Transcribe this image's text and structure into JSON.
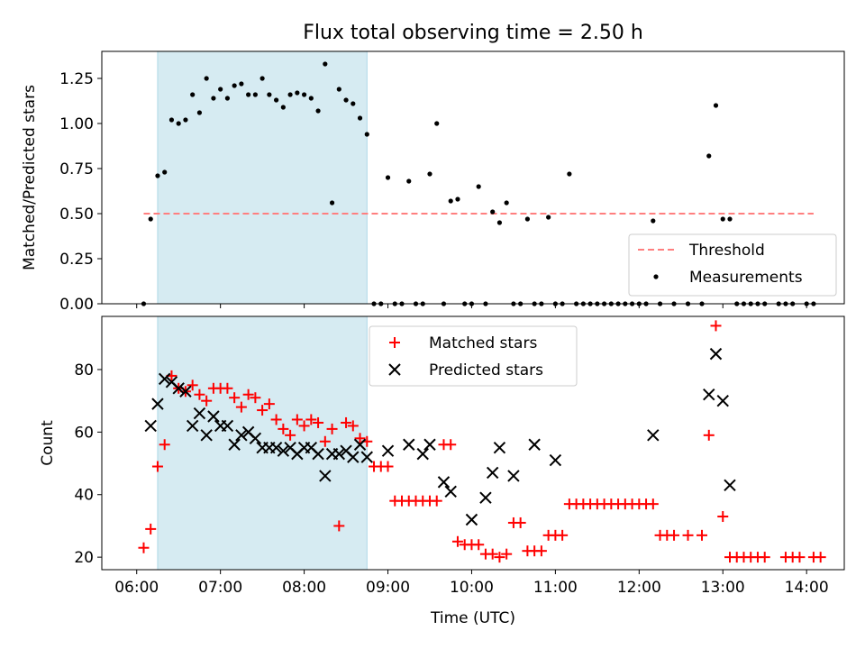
{
  "figure": {
    "title": "Flux total observing time = 2.50 h"
  },
  "chart_data": [
    {
      "type": "scatter",
      "panel": "top",
      "ylabel": "Matched/Predicted stars",
      "xlabel": "",
      "xlim": [
        "05:35",
        "14:27"
      ],
      "ylim": [
        0,
        1.4
      ],
      "yticks": [
        "0.00",
        "0.25",
        "0.50",
        "0.75",
        "1.00",
        "1.25"
      ],
      "shaded_interval": [
        "06:15",
        "08:45"
      ],
      "threshold": {
        "name": "Threshold",
        "value": 0.5,
        "x_range": [
          "06:05",
          "14:05"
        ],
        "color": "#ff7f7f"
      },
      "legend": {
        "position": "bottom-right",
        "entries": [
          "Threshold",
          "Measurements"
        ]
      },
      "series": [
        {
          "name": "Measurements",
          "marker": "dot",
          "color": "#000000",
          "points": [
            [
              "06:05",
              0.0
            ],
            [
              "06:10",
              0.47
            ],
            [
              "06:15",
              0.71
            ],
            [
              "06:20",
              0.73
            ],
            [
              "06:25",
              1.02
            ],
            [
              "06:30",
              1.0
            ],
            [
              "06:35",
              1.02
            ],
            [
              "06:40",
              1.16
            ],
            [
              "06:45",
              1.06
            ],
            [
              "06:50",
              1.25
            ],
            [
              "06:55",
              1.14
            ],
            [
              "07:00",
              1.19
            ],
            [
              "07:05",
              1.14
            ],
            [
              "07:10",
              1.21
            ],
            [
              "07:15",
              1.22
            ],
            [
              "07:20",
              1.16
            ],
            [
              "07:25",
              1.16
            ],
            [
              "07:30",
              1.25
            ],
            [
              "07:35",
              1.16
            ],
            [
              "07:40",
              1.13
            ],
            [
              "07:45",
              1.09
            ],
            [
              "07:50",
              1.16
            ],
            [
              "07:55",
              1.17
            ],
            [
              "08:00",
              1.16
            ],
            [
              "08:05",
              1.14
            ],
            [
              "08:10",
              1.07
            ],
            [
              "08:15",
              1.33
            ],
            [
              "08:20",
              0.56
            ],
            [
              "08:25",
              1.19
            ],
            [
              "08:30",
              1.13
            ],
            [
              "08:35",
              1.11
            ],
            [
              "08:40",
              1.03
            ],
            [
              "08:45",
              0.94
            ],
            [
              "08:50",
              0.0
            ],
            [
              "08:55",
              0.0
            ],
            [
              "09:00",
              0.7
            ],
            [
              "09:05",
              0.0
            ],
            [
              "09:10",
              0.0
            ],
            [
              "09:15",
              0.68
            ],
            [
              "09:20",
              0.0
            ],
            [
              "09:25",
              0.0
            ],
            [
              "09:30",
              0.72
            ],
            [
              "09:35",
              1.0
            ],
            [
              "09:40",
              0.0
            ],
            [
              "09:45",
              0.57
            ],
            [
              "09:50",
              0.58
            ],
            [
              "09:55",
              0.0
            ],
            [
              "10:00",
              0.0
            ],
            [
              "10:05",
              0.65
            ],
            [
              "10:10",
              0.0
            ],
            [
              "10:15",
              0.51
            ],
            [
              "10:20",
              0.45
            ],
            [
              "10:25",
              0.56
            ],
            [
              "10:30",
              0.0
            ],
            [
              "10:35",
              0.0
            ],
            [
              "10:40",
              0.47
            ],
            [
              "10:45",
              0.0
            ],
            [
              "10:50",
              0.0
            ],
            [
              "10:55",
              0.48
            ],
            [
              "11:00",
              0.0
            ],
            [
              "11:05",
              0.0
            ],
            [
              "11:10",
              0.72
            ],
            [
              "11:15",
              0.0
            ],
            [
              "11:20",
              0.0
            ],
            [
              "11:25",
              0.0
            ],
            [
              "11:30",
              0.0
            ],
            [
              "11:35",
              0.0
            ],
            [
              "11:40",
              0.0
            ],
            [
              "11:45",
              0.0
            ],
            [
              "11:50",
              0.0
            ],
            [
              "11:55",
              0.0
            ],
            [
              "12:00",
              0.0
            ],
            [
              "12:05",
              0.0
            ],
            [
              "12:10",
              0.46
            ],
            [
              "12:15",
              0.0
            ],
            [
              "12:25",
              0.0
            ],
            [
              "12:35",
              0.0
            ],
            [
              "12:45",
              0.0
            ],
            [
              "12:50",
              0.82
            ],
            [
              "12:55",
              1.1
            ],
            [
              "13:00",
              0.47
            ],
            [
              "13:05",
              0.47
            ],
            [
              "13:10",
              0.0
            ],
            [
              "13:15",
              0.0
            ],
            [
              "13:20",
              0.0
            ],
            [
              "13:25",
              0.0
            ],
            [
              "13:30",
              0.0
            ],
            [
              "13:40",
              0.0
            ],
            [
              "13:45",
              0.0
            ],
            [
              "13:50",
              0.0
            ],
            [
              "14:00",
              0.0
            ],
            [
              "14:05",
              0.0
            ]
          ]
        }
      ]
    },
    {
      "type": "scatter",
      "panel": "bottom",
      "ylabel": "Count",
      "xlabel": "Time (UTC)",
      "xlim": [
        "05:35",
        "14:27"
      ],
      "xticks": [
        "06:00",
        "07:00",
        "08:00",
        "09:00",
        "10:00",
        "11:00",
        "12:00",
        "13:00",
        "14:00"
      ],
      "ylim": [
        16,
        97
      ],
      "yticks": [
        "20",
        "40",
        "60",
        "80"
      ],
      "shaded_interval": [
        "06:15",
        "08:45"
      ],
      "legend": {
        "position": "top-center",
        "entries": [
          "Matched stars",
          "Predicted stars"
        ]
      },
      "series": [
        {
          "name": "Matched stars",
          "marker": "plus",
          "color": "#ff0000",
          "points": [
            [
              "06:05",
              23
            ],
            [
              "06:10",
              29
            ],
            [
              "06:15",
              49
            ],
            [
              "06:20",
              56
            ],
            [
              "06:25",
              78
            ],
            [
              "06:30",
              74
            ],
            [
              "06:35",
              73
            ],
            [
              "06:40",
              75
            ],
            [
              "06:45",
              72
            ],
            [
              "06:50",
              70
            ],
            [
              "06:55",
              74
            ],
            [
              "07:00",
              74
            ],
            [
              "07:05",
              74
            ],
            [
              "07:10",
              71
            ],
            [
              "07:15",
              68
            ],
            [
              "07:20",
              72
            ],
            [
              "07:25",
              71
            ],
            [
              "07:30",
              67
            ],
            [
              "07:35",
              69
            ],
            [
              "07:40",
              64
            ],
            [
              "07:45",
              61
            ],
            [
              "07:50",
              59
            ],
            [
              "07:55",
              64
            ],
            [
              "08:00",
              62
            ],
            [
              "08:05",
              64
            ],
            [
              "08:10",
              63
            ],
            [
              "08:15",
              57
            ],
            [
              "08:20",
              61
            ],
            [
              "08:25",
              30
            ],
            [
              "08:30",
              63
            ],
            [
              "08:35",
              62
            ],
            [
              "08:40",
              58
            ],
            [
              "08:45",
              57
            ],
            [
              "08:50",
              49
            ],
            [
              "08:55",
              49
            ],
            [
              "09:00",
              49
            ],
            [
              "09:05",
              38
            ],
            [
              "09:10",
              38
            ],
            [
              "09:15",
              38
            ],
            [
              "09:20",
              38
            ],
            [
              "09:25",
              38
            ],
            [
              "09:30",
              38
            ],
            [
              "09:35",
              38
            ],
            [
              "09:40",
              56
            ],
            [
              "09:45",
              56
            ],
            [
              "09:50",
              25
            ],
            [
              "09:55",
              24
            ],
            [
              "10:00",
              24
            ],
            [
              "10:05",
              24
            ],
            [
              "10:10",
              21
            ],
            [
              "10:15",
              21
            ],
            [
              "10:20",
              20
            ],
            [
              "10:25",
              21
            ],
            [
              "10:30",
              31
            ],
            [
              "10:35",
              31
            ],
            [
              "10:40",
              22
            ],
            [
              "10:45",
              22
            ],
            [
              "10:50",
              22
            ],
            [
              "10:55",
              27
            ],
            [
              "11:00",
              27
            ],
            [
              "11:05",
              27
            ],
            [
              "11:10",
              37
            ],
            [
              "11:15",
              37
            ],
            [
              "11:20",
              37
            ],
            [
              "11:25",
              37
            ],
            [
              "11:30",
              37
            ],
            [
              "11:35",
              37
            ],
            [
              "11:40",
              37
            ],
            [
              "11:45",
              37
            ],
            [
              "11:50",
              37
            ],
            [
              "11:55",
              37
            ],
            [
              "12:00",
              37
            ],
            [
              "12:05",
              37
            ],
            [
              "12:10",
              37
            ],
            [
              "12:15",
              27
            ],
            [
              "12:20",
              27
            ],
            [
              "12:25",
              27
            ],
            [
              "12:35",
              27
            ],
            [
              "12:45",
              27
            ],
            [
              "12:50",
              59
            ],
            [
              "12:55",
              94
            ],
            [
              "13:00",
              33
            ],
            [
              "13:05",
              20
            ],
            [
              "13:10",
              20
            ],
            [
              "13:15",
              20
            ],
            [
              "13:20",
              20
            ],
            [
              "13:25",
              20
            ],
            [
              "13:30",
              20
            ],
            [
              "13:45",
              20
            ],
            [
              "13:50",
              20
            ],
            [
              "13:55",
              20
            ],
            [
              "14:05",
              20
            ],
            [
              "14:10",
              20
            ]
          ]
        },
        {
          "name": "Predicted stars",
          "marker": "x",
          "color": "#000000",
          "points": [
            [
              "06:10",
              62
            ],
            [
              "06:15",
              69
            ],
            [
              "06:20",
              77
            ],
            [
              "06:25",
              76
            ],
            [
              "06:30",
              74
            ],
            [
              "06:35",
              73
            ],
            [
              "06:40",
              62
            ],
            [
              "06:45",
              66
            ],
            [
              "06:50",
              59
            ],
            [
              "06:55",
              65
            ],
            [
              "07:00",
              62
            ],
            [
              "07:05",
              62
            ],
            [
              "07:10",
              56
            ],
            [
              "07:15",
              59
            ],
            [
              "07:20",
              60
            ],
            [
              "07:25",
              58
            ],
            [
              "07:30",
              55
            ],
            [
              "07:35",
              55
            ],
            [
              "07:40",
              55
            ],
            [
              "07:45",
              54
            ],
            [
              "07:50",
              55
            ],
            [
              "07:55",
              53
            ],
            [
              "08:00",
              55
            ],
            [
              "08:05",
              55
            ],
            [
              "08:10",
              53
            ],
            [
              "08:15",
              46
            ],
            [
              "08:20",
              53
            ],
            [
              "08:25",
              53
            ],
            [
              "08:30",
              54
            ],
            [
              "08:35",
              52
            ],
            [
              "08:40",
              56
            ],
            [
              "08:45",
              52
            ],
            [
              "09:00",
              54
            ],
            [
              "09:15",
              56
            ],
            [
              "09:25",
              53
            ],
            [
              "09:30",
              56
            ],
            [
              "09:40",
              44
            ],
            [
              "09:45",
              41
            ],
            [
              "10:00",
              32
            ],
            [
              "10:10",
              39
            ],
            [
              "10:15",
              47
            ],
            [
              "10:20",
              55
            ],
            [
              "10:30",
              46
            ],
            [
              "10:45",
              56
            ],
            [
              "11:00",
              51
            ],
            [
              "12:10",
              59
            ],
            [
              "12:50",
              72
            ],
            [
              "12:55",
              85
            ],
            [
              "13:00",
              70
            ],
            [
              "13:05",
              43
            ]
          ]
        }
      ]
    }
  ]
}
